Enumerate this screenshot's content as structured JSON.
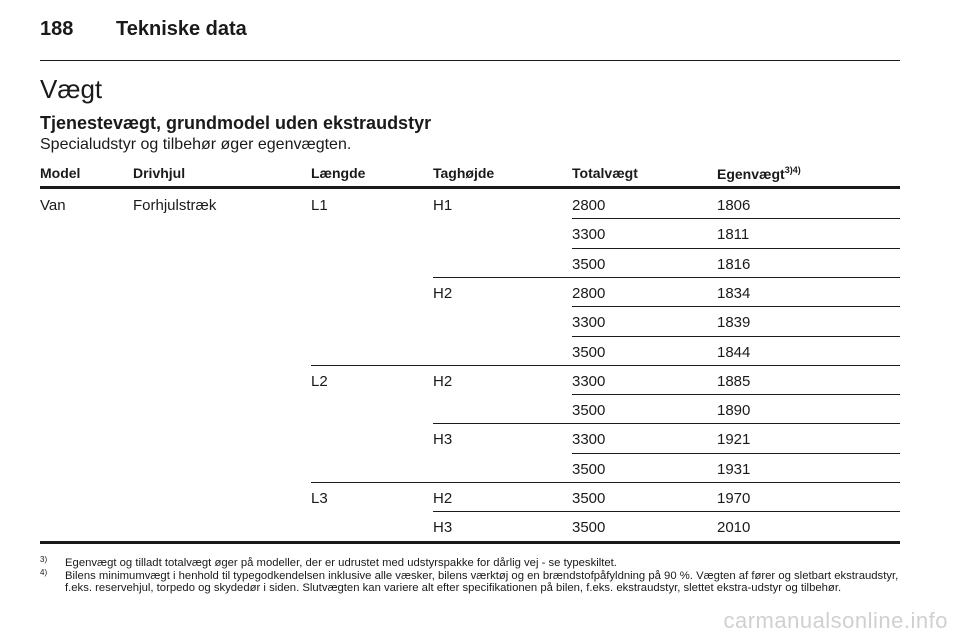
{
  "header": {
    "page_number": "188",
    "chapter": "Tekniske data"
  },
  "section": {
    "title": "Vægt",
    "subtitle": "Tjenestevægt, grundmodel uden ekstraudstyr",
    "intro": "Specialudstyr og tilbehør øger egenvægten."
  },
  "table": {
    "headers": {
      "model": "Model",
      "drive": "Drivhjul",
      "length": "Længde",
      "roof": "Taghøjde",
      "total": "Totalvægt",
      "weight": "Egenvægt",
      "weight_refs": "3)4)"
    },
    "rows": [
      {
        "model": "Van",
        "drive": "Forhjulstræk",
        "length": "L1",
        "roof": "H1",
        "total": "2800",
        "weight": "1806"
      },
      {
        "model": "",
        "drive": "",
        "length": "",
        "roof": "",
        "total": "3300",
        "weight": "1811"
      },
      {
        "model": "",
        "drive": "",
        "length": "",
        "roof": "",
        "total": "3500",
        "weight": "1816"
      },
      {
        "model": "",
        "drive": "",
        "length": "",
        "roof": "H2",
        "total": "2800",
        "weight": "1834"
      },
      {
        "model": "",
        "drive": "",
        "length": "",
        "roof": "",
        "total": "3300",
        "weight": "1839"
      },
      {
        "model": "",
        "drive": "",
        "length": "",
        "roof": "",
        "total": "3500",
        "weight": "1844"
      },
      {
        "model": "",
        "drive": "",
        "length": "L2",
        "roof": "H2",
        "total": "3300",
        "weight": "1885"
      },
      {
        "model": "",
        "drive": "",
        "length": "",
        "roof": "",
        "total": "3500",
        "weight": "1890"
      },
      {
        "model": "",
        "drive": "",
        "length": "",
        "roof": "H3",
        "total": "3300",
        "weight": "1921"
      },
      {
        "model": "",
        "drive": "",
        "length": "",
        "roof": "",
        "total": "3500",
        "weight": "1931"
      },
      {
        "model": "",
        "drive": "",
        "length": "L3",
        "roof": "H2",
        "total": "3500",
        "weight": "1970"
      },
      {
        "model": "",
        "drive": "",
        "length": "",
        "roof": "H3",
        "total": "3500",
        "weight": "2010"
      }
    ]
  },
  "footnotes": [
    {
      "mark": "3)",
      "text": "Egenvægt og tilladt totalvægt øger på modeller, der er udrustet med udstyrspakke for dårlig vej - se typeskiltet."
    },
    {
      "mark": "4)",
      "text": "Bilens minimumvægt i henhold til typegodkendelsen inklusive alle væsker, bilens værktøj og en brændstofpåfyldning på 90 %. Vægten af fører og sletbart ekstraudstyr, f.eks. reservehjul, torpedo og skydedør i siden. Slutvægten kan variere alt efter specifikationen på bilen, f.eks. ekstraudstyr, slettet ekstra-udstyr og tilbehør."
    }
  ],
  "watermark": "carmanualsonline.info"
}
